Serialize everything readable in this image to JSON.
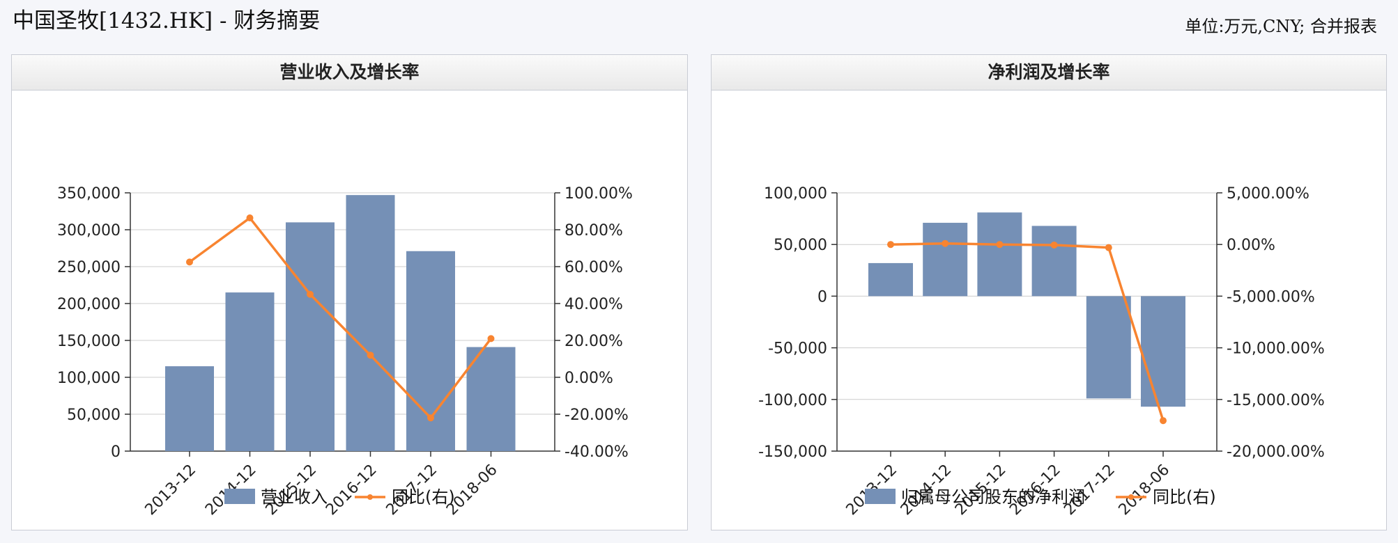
{
  "header": {
    "title": "中国圣牧[1432.HK] - 财务摘要",
    "unit_note": "单位:万元,CNY; 合并报表"
  },
  "colors": {
    "bar": "#7590b6",
    "line": "#f88430",
    "grid": "#cccccc"
  },
  "chart_data": [
    {
      "type": "bar",
      "title": "营业收入及增长率",
      "categories": [
        "2013-12",
        "2014-12",
        "2015-12",
        "2016-12",
        "2017-12",
        "2018-06"
      ],
      "series": [
        {
          "name": "营业收入",
          "type": "bar",
          "axis": "left",
          "values": [
            115000,
            215000,
            310000,
            347000,
            271000,
            141000
          ]
        },
        {
          "name": "同比(右)",
          "type": "line",
          "axis": "right",
          "values": [
            62.5,
            86.4,
            45.0,
            12.0,
            -22.0,
            21.0
          ]
        }
      ],
      "left_axis": {
        "min": 0,
        "max": 350000,
        "ticks": [
          "350,000",
          "300,000",
          "250,000",
          "200,000",
          "150,000",
          "100,000",
          "50,000",
          "0"
        ]
      },
      "right_axis": {
        "min": -40,
        "max": 100,
        "unit": "%",
        "ticks": [
          "100.00%",
          "80.00%",
          "60.00%",
          "40.00%",
          "20.00%",
          "0.00%",
          "-20.00%",
          "-40.00%"
        ]
      },
      "grid": true,
      "legend_position": "bottom"
    },
    {
      "type": "bar",
      "title": "净利润及增长率",
      "categories": [
        "2013-12",
        "2014-12",
        "2015-12",
        "2016-12",
        "2017-12",
        "2018-06"
      ],
      "series": [
        {
          "name": "归属母公司股东的净利润",
          "type": "bar",
          "axis": "left",
          "values": [
            32000,
            71000,
            81000,
            68000,
            -99000,
            -107000
          ]
        },
        {
          "name": "同比(右)",
          "type": "line",
          "axis": "right",
          "values": [
            0,
            100,
            0,
            -50,
            -300,
            -17050
          ]
        }
      ],
      "left_axis": {
        "min": -150000,
        "max": 100000,
        "ticks": [
          "100,000",
          "50,000",
          "0",
          "-50,000",
          "-100,000",
          "-150,000"
        ]
      },
      "right_axis": {
        "min": -20000,
        "max": 5000,
        "unit": "%",
        "ticks": [
          "5,000.00%",
          "0.00%",
          "-5,000.00%",
          "-10,000.00%",
          "-15,000.00%",
          "-20,000.00%"
        ]
      },
      "grid": true,
      "legend_position": "bottom"
    }
  ]
}
